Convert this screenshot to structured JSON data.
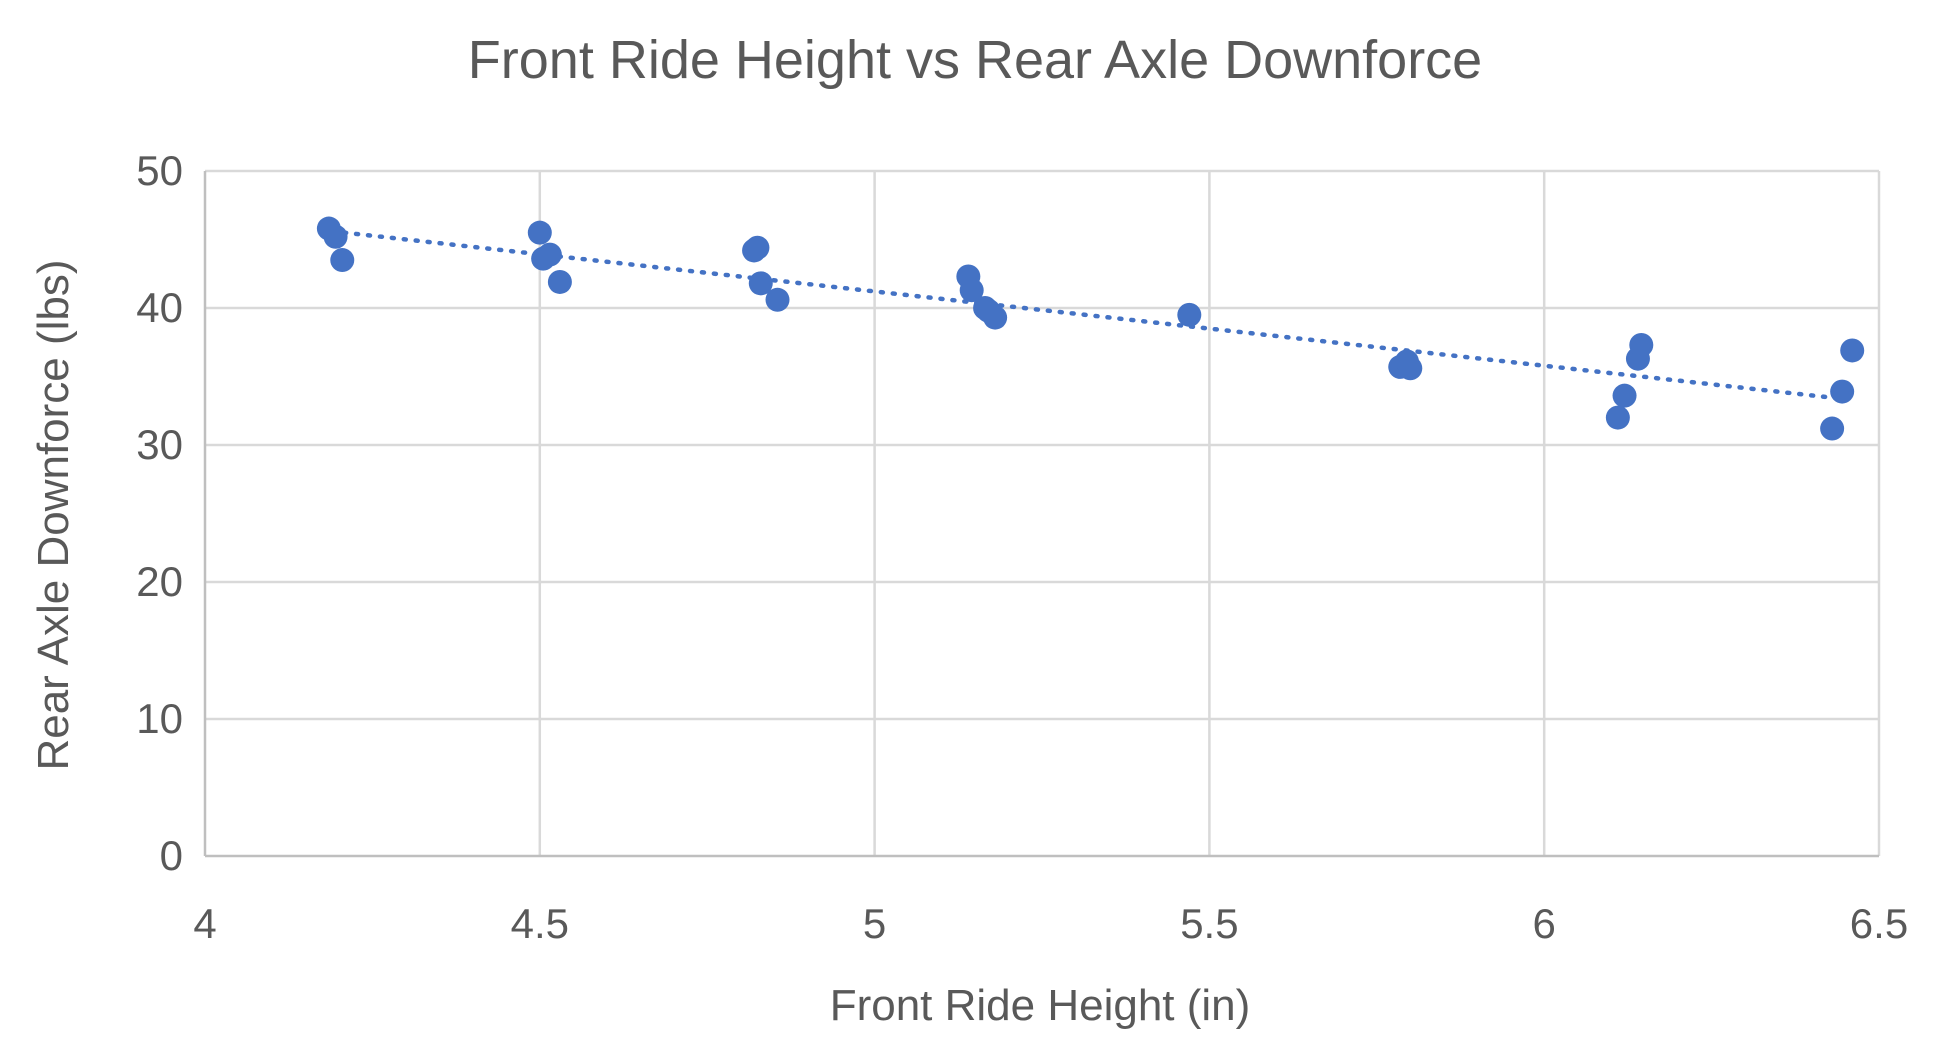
{
  "chart_data": {
    "type": "scatter",
    "title": "Front Ride Height vs Rear Axle Downforce",
    "xlabel": "Front Ride Height (in)",
    "ylabel": "Rear Axle Downforce (lbs)",
    "xlim": [
      4,
      6.5
    ],
    "ylim": [
      0,
      50
    ],
    "xticks": [
      "4",
      "4.5",
      "5",
      "5.5",
      "6",
      "6.5"
    ],
    "yticks": [
      "0",
      "10",
      "20",
      "30",
      "40",
      "50"
    ],
    "grid": true,
    "legend": "none",
    "marker_color": "#4472c4",
    "trendline": {
      "type": "linear",
      "style": "dotted",
      "x": [
        4.19,
        6.44
      ],
      "y": [
        45.6,
        33.4
      ]
    },
    "series": [
      {
        "x": [
          4.185,
          4.195,
          4.205,
          4.5,
          4.505,
          4.515,
          4.53,
          4.82,
          4.825,
          4.83,
          4.855,
          5.14,
          5.145,
          5.165,
          5.17,
          5.18,
          5.47,
          5.785,
          5.795,
          5.8,
          6.11,
          6.12,
          6.14,
          6.145,
          6.43,
          6.445,
          6.46
        ],
        "y": [
          45.8,
          45.2,
          43.5,
          45.5,
          43.6,
          43.9,
          41.9,
          44.2,
          44.4,
          41.8,
          40.6,
          42.3,
          41.3,
          40.0,
          39.8,
          39.3,
          39.5,
          35.7,
          36.1,
          35.6,
          32.0,
          33.6,
          36.3,
          37.3,
          31.2,
          33.9,
          36.9
        ]
      }
    ]
  }
}
